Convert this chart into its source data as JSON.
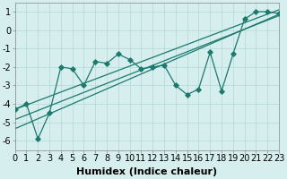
{
  "xlabel": "Humidex (Indice chaleur)",
  "ylabel": "",
  "background_color": "#d6eeee",
  "line_color": "#1a7a6e",
  "scatter_color": "#1a7a6e",
  "x_data": [
    0,
    1,
    2,
    3,
    4,
    5,
    6,
    7,
    8,
    9,
    10,
    11,
    12,
    13,
    14,
    15,
    16,
    17,
    18,
    19,
    20,
    21,
    22,
    23
  ],
  "y_data": [
    -4.3,
    -4.0,
    -5.9,
    -4.5,
    -2.0,
    -2.1,
    -3.0,
    -1.7,
    -1.8,
    -1.3,
    -1.6,
    -2.1,
    -2.0,
    -1.9,
    -3.0,
    -3.5,
    -3.2,
    -1.2,
    -3.3,
    -1.3,
    0.6,
    1.0,
    1.0,
    0.9
  ],
  "reg_lines": [
    {
      "intercept": -4.3,
      "slope": 0.235
    },
    {
      "intercept": -4.85,
      "slope": 0.245
    },
    {
      "intercept": -5.35,
      "slope": 0.27
    }
  ],
  "xlim": [
    0,
    23
  ],
  "ylim": [
    -6.5,
    1.5
  ],
  "xticks": [
    0,
    1,
    2,
    3,
    4,
    5,
    6,
    7,
    8,
    9,
    10,
    11,
    12,
    13,
    14,
    15,
    16,
    17,
    18,
    19,
    20,
    21,
    22,
    23
  ],
  "yticks": [
    -6,
    -5,
    -4,
    -3,
    -2,
    -1,
    0,
    1
  ],
  "grid_color": "#b0d8d8",
  "tick_fontsize": 7,
  "label_fontsize": 8
}
